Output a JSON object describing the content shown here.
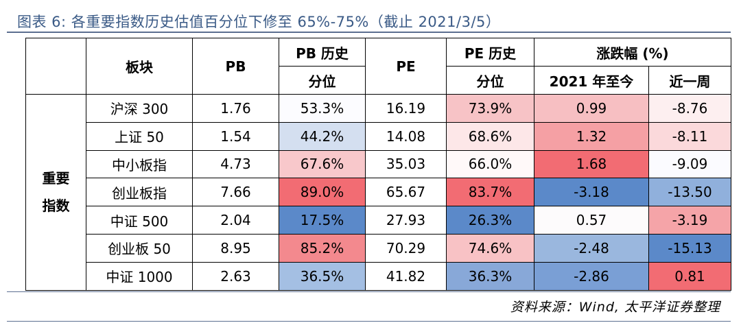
{
  "title": "图表 6: 各重要指数历史估值百分位下修至 65%-75%（截止 2021/3/5）",
  "source": "资料来源：Wind, 太平洋证券整理",
  "colors": {
    "title": "#3a5a86",
    "rule": "#5b6e8f"
  },
  "table": {
    "headers": {
      "board": "板块",
      "pb": "PB",
      "pb_pct_line1": "PB 历史",
      "pb_pct_line2": "分位",
      "pe": "PE",
      "pe_pct_line1": "PE 历史",
      "pe_pct_line2": "分位",
      "change": "涨跌幅 (%)",
      "ytd": "2021 年至今",
      "week": "近一周"
    },
    "group_label_line1": "重要",
    "group_label_line2": "指数",
    "rows": [
      {
        "name": "沪深 300",
        "pb": "1.76",
        "pb_pct": "53.3%",
        "pe": "16.19",
        "pe_pct": "73.9%",
        "ytd": "0.99",
        "week": "-8.76",
        "pb_pct_bg": "#fcfcff",
        "pe_pct_bg": "#f7c3c6",
        "ytd_bg": "#f7bfc2",
        "week_bg": "#fdeff0"
      },
      {
        "name": "上证 50",
        "pb": "1.54",
        "pb_pct": "44.2%",
        "pe": "14.08",
        "pe_pct": "68.6%",
        "ytd": "1.32",
        "week": "-8.11",
        "pb_pct_bg": "#d4dff0",
        "pe_pct_bg": "#fde7e8",
        "ytd_bg": "#f5a0a4",
        "week_bg": "#fbd9db"
      },
      {
        "name": "中小板指",
        "pb": "4.73",
        "pb_pct": "67.6%",
        "pe": "35.03",
        "pe_pct": "66.0%",
        "ytd": "1.68",
        "week": "-9.09",
        "pb_pct_bg": "#f8c8cb",
        "pe_pct_bg": "#fff9f9",
        "ytd_bg": "#f26c73",
        "week_bg": "#fbfbff"
      },
      {
        "name": "创业板指",
        "pb": "7.66",
        "pb_pct": "89.0%",
        "pe": "65.67",
        "pe_pct": "83.7%",
        "ytd": "-3.18",
        "week": "-13.50",
        "pb_pct_bg": "#f26c73",
        "pe_pct_bg": "#f26c73",
        "ytd_bg": "#5b89c9",
        "week_bg": "#90b0dc"
      },
      {
        "name": "中证 500",
        "pb": "2.04",
        "pb_pct": "17.5%",
        "pe": "27.93",
        "pe_pct": "26.3%",
        "ytd": "0.57",
        "week": "-3.19",
        "pb_pct_bg": "#5b89c9",
        "pe_pct_bg": "#5b89c9",
        "ytd_bg": "#fdfbfc",
        "week_bg": "#f5a4a8"
      },
      {
        "name": "创业板 50",
        "pb": "8.95",
        "pb_pct": "85.2%",
        "pe": "70.29",
        "pe_pct": "74.6%",
        "ytd": "-2.48",
        "week": "-15.13",
        "pb_pct_bg": "#f3898e",
        "pe_pct_bg": "#f8c2c5",
        "ytd_bg": "#9ab7de",
        "week_bg": "#5b89c9"
      },
      {
        "name": "中证 1000",
        "pb": "2.63",
        "pb_pct": "36.5%",
        "pe": "41.82",
        "pe_pct": "36.3%",
        "ytd": "-2.86",
        "week": "0.81",
        "pb_pct_bg": "#a4bfe3",
        "pe_pct_bg": "#88a8d8",
        "ytd_bg": "#7a9fd5",
        "week_bg": "#f26c73"
      }
    ]
  }
}
